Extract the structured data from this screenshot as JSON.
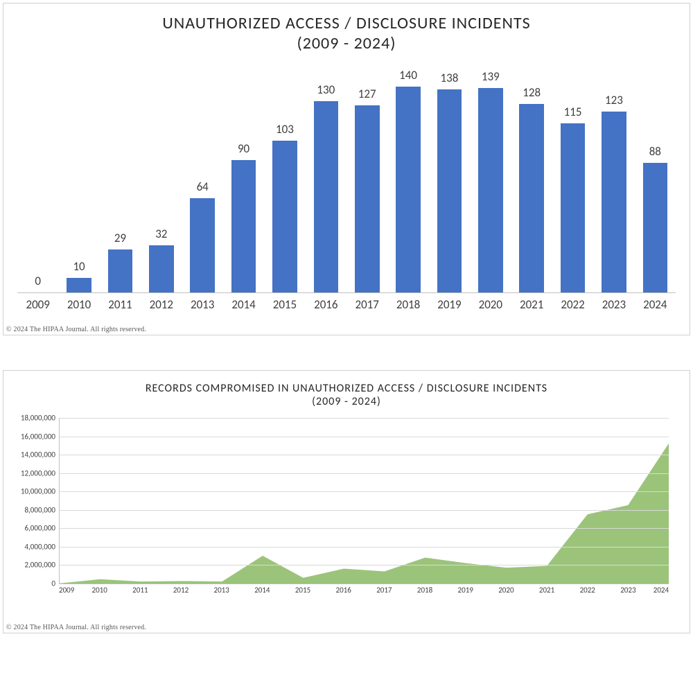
{
  "bar_chart": {
    "type": "bar",
    "title_line1": "UNAUTHORIZED ACCESS / DISCLOSURE INCIDENTS",
    "title_line2": "(2009 - 2024)",
    "title_fontsize": 24,
    "title_color": "#262626",
    "categories": [
      "2009",
      "2010",
      "2011",
      "2012",
      "2013",
      "2014",
      "2015",
      "2016",
      "2017",
      "2018",
      "2019",
      "2020",
      "2021",
      "2022",
      "2023",
      "2024"
    ],
    "values": [
      0,
      10,
      29,
      32,
      64,
      90,
      103,
      130,
      127,
      140,
      138,
      139,
      128,
      115,
      123,
      88
    ],
    "bar_color": "#4472c4",
    "label_fontsize": 17,
    "label_color": "#404040",
    "ymax": 160,
    "axis_color": "#bfbfbf",
    "background_color": "#ffffff",
    "bar_width_ratio": 0.6,
    "copyright": "© 2024 The HIPAA Journal. All rights reserved."
  },
  "area_chart": {
    "type": "area",
    "title_line1": "RECORDS COMPROMISED IN UNAUTHORIZED ACCESS / DISCLOSURE INCIDENTS",
    "title_line2": "(2009 - 2024)",
    "title_fontsize": 16,
    "title_color": "#262626",
    "categories": [
      "2009",
      "2010",
      "2011",
      "2012",
      "2013",
      "2014",
      "2015",
      "2016",
      "2017",
      "2018",
      "2019",
      "2020",
      "2021",
      "2022",
      "2023",
      "2024"
    ],
    "values": [
      0,
      450000,
      200000,
      250000,
      200000,
      3000000,
      600000,
      1600000,
      1300000,
      2800000,
      2200000,
      1700000,
      1900000,
      7500000,
      8500000,
      15200000
    ],
    "fill_color": "#9bc47a",
    "stroke_color": "#8ab566",
    "ymin": 0,
    "ymax": 18000000,
    "ytick_step": 2000000,
    "ytick_labels": [
      "0",
      "2,000,000",
      "4,000,000",
      "6,000,000",
      "8,000,000",
      "10,000,000",
      "12,000,000",
      "14,000,000",
      "16,000,000",
      "18,000,000"
    ],
    "grid_color": "#d9d9d9",
    "axis_color": "#bfbfbf",
    "label_fontsize": 11,
    "background_color": "#ffffff",
    "copyright": "© 2024 The HIPAA Journal. All rights reserved."
  }
}
